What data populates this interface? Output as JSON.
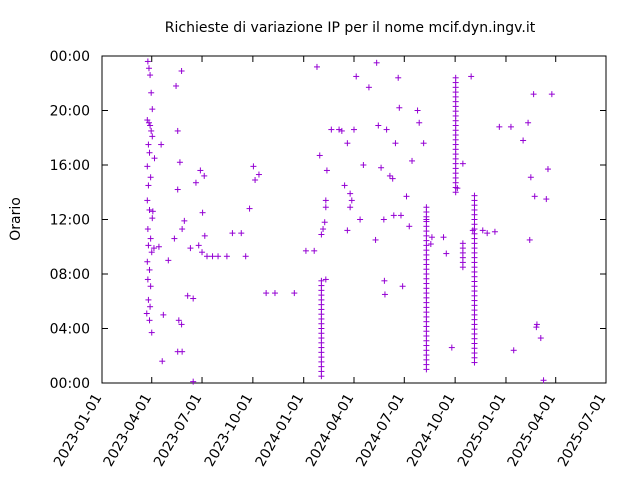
{
  "chart_data": {
    "type": "scatter",
    "title": "Richieste di variazione IP per il nome mcif.dyn.ingv.it",
    "xlabel": "",
    "ylabel": "Orario",
    "x_ticks": [
      "2023-01-01",
      "2023-04-01",
      "2023-07-01",
      "2023-10-01",
      "2024-01-01",
      "2024-04-01",
      "2024-07-01",
      "2024-10-01",
      "2025-01-01",
      "2025-04-01",
      "2025-07-01"
    ],
    "y_ticks": [
      "00:00",
      "04:00",
      "08:00",
      "12:00",
      "16:00",
      "20:00",
      "00:00"
    ],
    "xlim": [
      "2023-01-01",
      "2025-07-01"
    ],
    "ylim": [
      0,
      24
    ],
    "marker": "+",
    "marker_color": "#9400d3",
    "grid": false,
    "points": [
      {
        "x": "2023-03-25",
        "y": 23.6
      },
      {
        "x": "2023-03-27",
        "y": 23.1
      },
      {
        "x": "2023-03-29",
        "y": 22.6
      },
      {
        "x": "2023-03-31",
        "y": 21.3
      },
      {
        "x": "2023-04-02",
        "y": 20.1
      },
      {
        "x": "2023-03-24",
        "y": 19.3
      },
      {
        "x": "2023-03-27",
        "y": 19.1
      },
      {
        "x": "2023-03-29",
        "y": 18.9
      },
      {
        "x": "2023-03-31",
        "y": 18.5
      },
      {
        "x": "2023-04-02",
        "y": 18.1
      },
      {
        "x": "2023-03-26",
        "y": 17.5
      },
      {
        "x": "2023-03-28",
        "y": 16.9
      },
      {
        "x": "2023-03-24",
        "y": 15.9
      },
      {
        "x": "2023-03-30",
        "y": 15.1
      },
      {
        "x": "2023-03-26",
        "y": 14.5
      },
      {
        "x": "2023-03-24",
        "y": 13.4
      },
      {
        "x": "2023-03-28",
        "y": 12.7
      },
      {
        "x": "2023-04-02",
        "y": 12.1
      },
      {
        "x": "2023-03-25",
        "y": 11.3
      },
      {
        "x": "2023-03-30",
        "y": 10.6
      },
      {
        "x": "2023-03-26",
        "y": 10.1
      },
      {
        "x": "2023-04-01",
        "y": 9.6
      },
      {
        "x": "2023-03-24",
        "y": 8.9
      },
      {
        "x": "2023-03-28",
        "y": 8.3
      },
      {
        "x": "2023-03-25",
        "y": 7.6
      },
      {
        "x": "2023-03-30",
        "y": 7.1
      },
      {
        "x": "2023-03-26",
        "y": 6.1
      },
      {
        "x": "2023-03-29",
        "y": 5.6
      },
      {
        "x": "2023-03-23",
        "y": 5.1
      },
      {
        "x": "2023-03-28",
        "y": 4.6
      },
      {
        "x": "2023-04-01",
        "y": 3.7
      },
      {
        "x": "2023-04-03",
        "y": 12.6
      },
      {
        "x": "2023-04-05",
        "y": 9.9
      },
      {
        "x": "2023-04-06",
        "y": 16.5
      },
      {
        "x": "2023-04-14",
        "y": 10.0
      },
      {
        "x": "2023-04-20",
        "y": 1.6
      },
      {
        "x": "2023-04-18",
        "y": 17.5
      },
      {
        "x": "2023-04-22",
        "y": 5.0
      },
      {
        "x": "2023-05-01",
        "y": 9.0
      },
      {
        "x": "2023-05-12",
        "y": 10.6
      },
      {
        "x": "2023-05-18",
        "y": 18.5
      },
      {
        "x": "2023-05-18",
        "y": 14.2
      },
      {
        "x": "2023-05-15",
        "y": 21.8
      },
      {
        "x": "2023-05-25",
        "y": 22.9
      },
      {
        "x": "2023-05-22",
        "y": 16.2
      },
      {
        "x": "2023-05-26",
        "y": 11.3
      },
      {
        "x": "2023-05-30",
        "y": 11.9
      },
      {
        "x": "2023-05-20",
        "y": 4.6
      },
      {
        "x": "2023-05-25",
        "y": 4.3
      },
      {
        "x": "2023-05-18",
        "y": 2.3
      },
      {
        "x": "2023-05-26",
        "y": 2.3
      },
      {
        "x": "2023-06-05",
        "y": 6.4
      },
      {
        "x": "2023-06-10",
        "y": 9.9
      },
      {
        "x": "2023-06-15",
        "y": 6.2
      },
      {
        "x": "2023-06-15",
        "y": 0.1
      },
      {
        "x": "2023-06-20",
        "y": 14.7
      },
      {
        "x": "2023-06-28",
        "y": 15.6
      },
      {
        "x": "2023-07-05",
        "y": 15.2
      },
      {
        "x": "2023-07-02",
        "y": 12.5
      },
      {
        "x": "2023-06-25",
        "y": 10.1
      },
      {
        "x": "2023-07-01",
        "y": 9.6
      },
      {
        "x": "2023-07-06",
        "y": 10.8
      },
      {
        "x": "2023-07-10",
        "y": 9.3
      },
      {
        "x": "2023-07-20",
        "y": 9.3
      },
      {
        "x": "2023-07-30",
        "y": 9.3
      },
      {
        "x": "2023-08-15",
        "y": 9.3
      },
      {
        "x": "2023-08-25",
        "y": 11.0
      },
      {
        "x": "2023-09-10",
        "y": 11.0
      },
      {
        "x": "2023-09-18",
        "y": 9.3
      },
      {
        "x": "2023-09-25",
        "y": 12.8
      },
      {
        "x": "2023-10-02",
        "y": 15.9
      },
      {
        "x": "2023-10-05",
        "y": 14.9
      },
      {
        "x": "2023-10-12",
        "y": 15.3
      },
      {
        "x": "2023-10-25",
        "y": 6.6
      },
      {
        "x": "2023-11-10",
        "y": 6.6
      },
      {
        "x": "2023-12-15",
        "y": 6.6
      },
      {
        "x": "2024-01-05",
        "y": 9.7
      },
      {
        "x": "2024-01-20",
        "y": 9.7
      },
      {
        "x": "2024-01-25",
        "y": 23.2
      },
      {
        "x": "2024-01-30",
        "y": 16.7
      },
      {
        "x": "2024-02-02",
        "y": 10.9
      },
      {
        "x": "2024-02-05",
        "y": 11.3
      },
      {
        "x": "2024-02-08",
        "y": 11.8
      },
      {
        "x": "2024-02-10",
        "y": 12.9
      },
      {
        "x": "2024-02-10",
        "y": 13.4
      },
      {
        "x": "2024-02-12",
        "y": 15.6
      },
      {
        "x": "2024-02-10",
        "y": 7.6
      },
      {
        "x": "2024-02-20",
        "y": 18.6
      },
      {
        "x": "2024-03-05",
        "y": 18.6
      },
      {
        "x": "2024-03-10",
        "y": 18.5
      },
      {
        "x": "2024-03-15",
        "y": 14.5
      },
      {
        "x": "2024-03-20",
        "y": 17.6
      },
      {
        "x": "2024-03-20",
        "y": 11.2
      },
      {
        "x": "2024-03-25",
        "y": 13.9
      },
      {
        "x": "2024-03-25",
        "y": 12.9
      },
      {
        "x": "2024-03-28",
        "y": 13.4
      },
      {
        "x": "2024-04-01",
        "y": 18.6
      },
      {
        "x": "2024-04-05",
        "y": 22.5
      },
      {
        "x": "2024-04-12",
        "y": 12.0
      },
      {
        "x": "2024-04-18",
        "y": 16.0
      },
      {
        "x": "2024-04-28",
        "y": 21.7
      },
      {
        "x": "2024-05-10",
        "y": 10.5
      },
      {
        "x": "2024-05-12",
        "y": 23.5
      },
      {
        "x": "2024-05-15",
        "y": 18.9
      },
      {
        "x": "2024-05-20",
        "y": 15.8
      },
      {
        "x": "2024-05-25",
        "y": 12.0
      },
      {
        "x": "2024-05-26",
        "y": 7.5
      },
      {
        "x": "2024-05-27",
        "y": 6.5
      },
      {
        "x": "2024-05-30",
        "y": 18.6
      },
      {
        "x": "2024-06-05",
        "y": 15.2
      },
      {
        "x": "2024-06-10",
        "y": 15.0
      },
      {
        "x": "2024-06-15",
        "y": 17.6
      },
      {
        "x": "2024-06-12",
        "y": 12.3
      },
      {
        "x": "2024-06-20",
        "y": 22.4
      },
      {
        "x": "2024-06-22",
        "y": 20.2
      },
      {
        "x": "2024-06-25",
        "y": 12.3
      },
      {
        "x": "2024-06-28",
        "y": 7.1
      },
      {
        "x": "2024-07-05",
        "y": 13.7
      },
      {
        "x": "2024-07-15",
        "y": 16.3
      },
      {
        "x": "2024-07-10",
        "y": 11.5
      },
      {
        "x": "2024-07-25",
        "y": 20.0
      },
      {
        "x": "2024-07-28",
        "y": 19.1
      },
      {
        "x": "2024-08-05",
        "y": 17.6
      },
      {
        "x": "2024-08-10",
        "y": 12.0
      },
      {
        "x": "2024-08-18",
        "y": 10.2
      },
      {
        "x": "2024-08-20",
        "y": 10.7
      },
      {
        "x": "2024-09-10",
        "y": 10.7
      },
      {
        "x": "2024-09-15",
        "y": 9.5
      },
      {
        "x": "2024-09-25",
        "y": 2.6
      },
      {
        "x": "2024-10-05",
        "y": 14.3
      },
      {
        "x": "2024-10-15",
        "y": 16.1
      },
      {
        "x": "2024-10-30",
        "y": 22.5
      },
      {
        "x": "2024-11-02",
        "y": 11.2
      },
      {
        "x": "2024-11-20",
        "y": 11.2
      },
      {
        "x": "2024-11-28",
        "y": 11.0
      },
      {
        "x": "2024-12-12",
        "y": 11.1
      },
      {
        "x": "2024-12-20",
        "y": 18.8
      },
      {
        "x": "2025-01-10",
        "y": 18.8
      },
      {
        "x": "2025-01-15",
        "y": 2.4
      },
      {
        "x": "2025-02-01",
        "y": 17.8
      },
      {
        "x": "2025-02-10",
        "y": 19.1
      },
      {
        "x": "2025-02-13",
        "y": 10.5
      },
      {
        "x": "2025-02-15",
        "y": 15.1
      },
      {
        "x": "2025-02-20",
        "y": 21.2
      },
      {
        "x": "2025-02-22",
        "y": 13.7
      },
      {
        "x": "2025-02-25",
        "y": 4.1
      },
      {
        "x": "2025-02-26",
        "y": 4.3
      },
      {
        "x": "2025-03-05",
        "y": 3.3
      },
      {
        "x": "2025-03-10",
        "y": 0.2
      },
      {
        "x": "2025-03-15",
        "y": 13.5
      },
      {
        "x": "2025-03-18",
        "y": 15.7
      },
      {
        "x": "2025-03-25",
        "y": 21.2
      }
    ],
    "vertical_runs": [
      {
        "x": "2024-02-02",
        "from": 0.5,
        "to": 7.5
      },
      {
        "x": "2024-08-10",
        "from": 1.0,
        "to": 13.0
      },
      {
        "x": "2024-10-02",
        "from": 14.0,
        "to": 22.5
      },
      {
        "x": "2024-10-15",
        "from": 8.5,
        "to": 10.5
      },
      {
        "x": "2024-11-05",
        "from": 1.5,
        "to": 14.0
      }
    ]
  }
}
